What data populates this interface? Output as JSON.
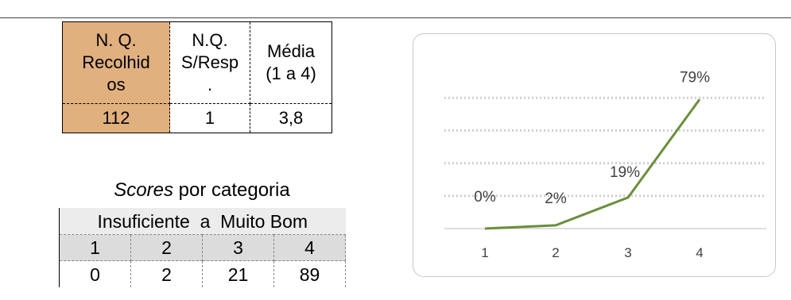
{
  "summary_table": {
    "headers": [
      "N. Q. Recolhidos",
      "N.Q. S/Resp.",
      "Média (1 a 4)"
    ],
    "header_lines": [
      [
        "N. Q.",
        "Recolhid",
        "os"
      ],
      [
        "N.Q.",
        "S/Resp",
        "."
      ],
      [
        "Média",
        "(1 a 4)"
      ]
    ],
    "values": [
      "112",
      "1",
      "3,8"
    ],
    "header_highlight_color": "#e1b07f"
  },
  "scores": {
    "title_italic": "Scores",
    "title_rest": " por categoria",
    "range_label": "Insuficiente  a  Muito Bom",
    "categories": [
      "1",
      "2",
      "3",
      "4"
    ],
    "counts": [
      "0",
      "2",
      "21",
      "89"
    ]
  },
  "chart_data": {
    "type": "line",
    "categories": [
      "1",
      "2",
      "3",
      "4"
    ],
    "values": [
      0,
      2,
      19,
      79
    ],
    "data_labels": [
      "0%",
      "2%",
      "19%",
      "79%"
    ],
    "ylim": [
      0,
      100
    ],
    "grid": true,
    "line_color": "#6a8f3c",
    "title": "",
    "xlabel": "",
    "ylabel": ""
  }
}
